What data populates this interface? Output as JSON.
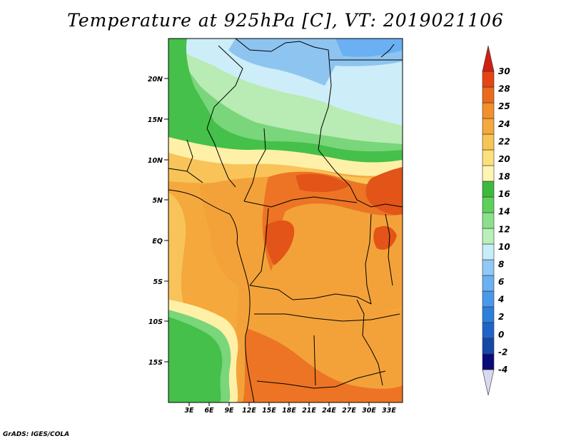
{
  "title": "Temperature at 925hPa [C], VT: 2019021106",
  "credit": "GrADS: IGES/COLA",
  "map": {
    "lat_labels": [
      "20N",
      "15N",
      "10N",
      "5N",
      "EQ",
      "5S",
      "10S",
      "15S"
    ],
    "lon_labels": [
      "3E",
      "6E",
      "9E",
      "12E",
      "15E",
      "18E",
      "21E",
      "24E",
      "27E",
      "30E",
      "33E"
    ]
  },
  "colorbar": {
    "labels": [
      "30",
      "28",
      "25",
      "24",
      "22",
      "20",
      "18",
      "16",
      "14",
      "12",
      "10",
      "8",
      "6",
      "4",
      "2",
      "0",
      "-2",
      "-4"
    ],
    "colors": [
      "#d8d8f0",
      "#0a0a78",
      "#1448a8",
      "#1f64c8",
      "#2d7fdc",
      "#4a98ec",
      "#6ab0f2",
      "#90c8f6",
      "#c8ecfa",
      "#b8f0b8",
      "#8ce08a",
      "#5ed05a",
      "#3cba3c",
      "#fff4b0",
      "#fde07a",
      "#f8c454",
      "#f5a83c",
      "#f2902c",
      "#ec6a1c",
      "#e64414",
      "#d02010"
    ]
  },
  "zones": {
    "cold_blue": "#8ec4f0",
    "light_blue": "#cdeef8",
    "green_dark": "#45c04a",
    "green_mid": "#7ad67a",
    "green_light": "#b8ecb4",
    "yellow": "#fff0a8",
    "orange_light": "#f8c45a",
    "orange": "#f3a23a",
    "orange_dark": "#ec7424",
    "red": "#e25418"
  }
}
